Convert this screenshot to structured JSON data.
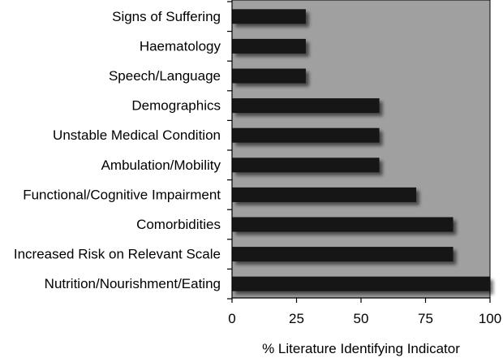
{
  "chart_data": {
    "type": "bar",
    "orientation": "horizontal",
    "categories": [
      "Signs of Suffering",
      "Haematology",
      "Speech/Language",
      "Demographics",
      "Unstable Medical Condition",
      "Ambulation/Mobility",
      "Functional/Cognitive Impairment",
      "Comorbidities",
      "Increased Risk on Relevant Scale",
      "Nutrition/Nourishment/Eating"
    ],
    "values": [
      28.6,
      28.6,
      28.6,
      57.1,
      57.1,
      57.1,
      71.4,
      85.7,
      85.7,
      100
    ],
    "title": "",
    "xlabel": "% Literature Identifying Indicator",
    "ylabel": "",
    "xlim": [
      0,
      100
    ],
    "xticks": [
      "0",
      "25",
      "50",
      "75",
      "100"
    ],
    "grid": false,
    "legend": "none",
    "colors": {
      "plot_background": "#a0a0a0",
      "bar_fill": "#151515",
      "bar_shadow": "#5a5a5a",
      "axis": "#000000"
    }
  }
}
